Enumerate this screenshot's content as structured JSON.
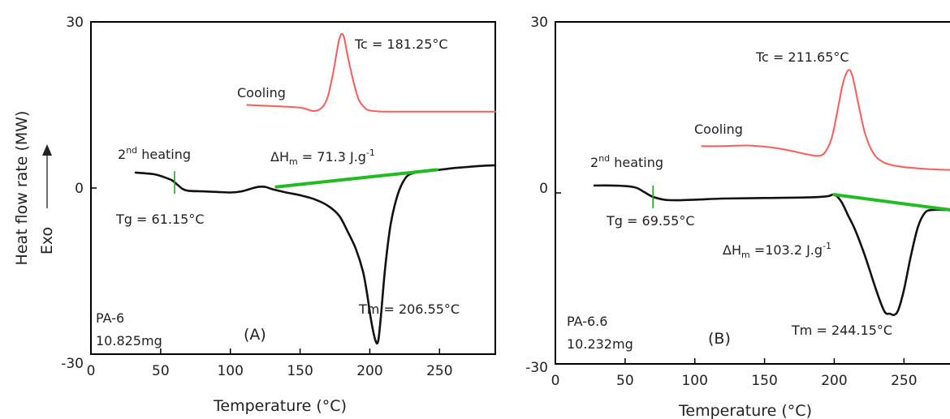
{
  "figure": {
    "ylabel": "Heat flow rate (MW)",
    "exo_label": "Exo"
  },
  "chart_data": [
    {
      "panel": "A",
      "type": "line",
      "xlabel": "Temperature (°C)",
      "ylabel": "Heat flow rate (MW)",
      "xlim": [
        0,
        290
      ],
      "ylim": [
        -30,
        30
      ],
      "xticks": [
        "0",
        "50",
        "100",
        "150",
        "200",
        "250"
      ],
      "yticks": [
        "-30",
        "0",
        "30"
      ],
      "grid": false,
      "colors": {
        "heating": "#111111",
        "cooling": "#ff5a5a",
        "baseline": "#22bb22",
        "tg_marker": "#22aa22"
      },
      "series": [
        {
          "name": "Cooling",
          "x": [
            112,
            130,
            150,
            160,
            166,
            170,
            174,
            178,
            181,
            184,
            188,
            192,
            196,
            200,
            210,
            230,
            260,
            290
          ],
          "y": [
            15,
            14.8,
            14.5,
            13.9,
            14.6,
            16.6,
            21.2,
            26.8,
            27.6,
            24,
            19.5,
            16,
            14.6,
            14,
            13.8,
            13.8,
            13.8,
            13.8
          ]
        },
        {
          "name": "2nd heating",
          "x": [
            32,
            45,
            52,
            58,
            62,
            66,
            70,
            80,
            90,
            100,
            108,
            115,
            120,
            125,
            130,
            140,
            150,
            160,
            170,
            178,
            184,
            190,
            195,
            198,
            201,
            204,
            206,
            208,
            211,
            215,
            220,
            225,
            230,
            240,
            250,
            260,
            270,
            280,
            290
          ],
          "y": [
            2.8,
            2.5,
            2,
            1.4,
            0.6,
            -0.2,
            -0.5,
            -0.6,
            -0.7,
            -0.8,
            -0.6,
            -0.1,
            0.2,
            0.2,
            -0.2,
            -0.8,
            -1.3,
            -2,
            -3.2,
            -5,
            -7.8,
            -11,
            -15,
            -19,
            -24,
            -27.5,
            -27.6,
            -23,
            -14.5,
            -6.5,
            -1.2,
            1.6,
            2.6,
            3,
            3.3,
            3.6,
            3.8,
            4,
            4.1
          ]
        },
        {
          "name": "ΔHm baseline",
          "x": [
            133,
            248
          ],
          "y": [
            0.2,
            3.3
          ]
        }
      ],
      "annotations": {
        "tc": "Tc = 181.25°C",
        "cooling": "Cooling",
        "heating": "2",
        "heating_sup": "nd",
        "heating_rest": " heating",
        "dh_prefix": "ΔH",
        "dh_sub": "m",
        "dh_value": " = 71.3 J.g",
        "dh_sup": "-1",
        "tg": "Tg = 61.15°C",
        "tm": "Tm = 206.55°C",
        "sample": "PA-6",
        "mass": "10.825mg",
        "panel_label": "(A)"
      },
      "tg_x": 60
    },
    {
      "panel": "B",
      "type": "line",
      "xlabel": "Temperature (°C)",
      "ylabel": "Heat flow rate (MW)",
      "xlim": [
        0,
        290
      ],
      "ylim": [
        -30,
        30
      ],
      "xticks": [
        "0",
        "50",
        "100",
        "150",
        "200",
        "250"
      ],
      "yticks": [
        "-30",
        "0",
        "30"
      ],
      "grid": false,
      "colors": {
        "heating": "#111111",
        "cooling": "#ff5a5a",
        "baseline": "#22bb22",
        "tg_marker": "#22aa22"
      },
      "series": [
        {
          "name": "Cooling",
          "x": [
            105,
            120,
            140,
            160,
            180,
            188,
            193,
            198,
            202,
            206,
            210,
            213,
            217,
            222,
            228,
            235,
            245,
            260,
            275,
            290
          ],
          "y": [
            8.2,
            8.2,
            8.3,
            7.8,
            6.8,
            6.5,
            7,
            9.5,
            14,
            19,
            21.5,
            20.5,
            16,
            10.5,
            7,
            5.4,
            4.7,
            4.3,
            4.1,
            4
          ]
        },
        {
          "name": "2nd heating",
          "x": [
            28,
            40,
            50,
            58,
            64,
            70,
            78,
            85,
            100,
            120,
            150,
            180,
            195,
            200,
            205,
            210,
            215,
            222,
            230,
            236,
            240,
            243,
            246,
            250,
            255,
            260,
            265,
            270,
            280,
            290
          ],
          "y": [
            1.3,
            1.3,
            1.2,
            0.9,
            0.1,
            -0.7,
            -1.2,
            -1.3,
            -1.2,
            -1,
            -0.9,
            -0.8,
            -0.6,
            -0.3,
            -1.5,
            -4,
            -6.5,
            -11,
            -17,
            -20.8,
            -21.2,
            -21.4,
            -20.5,
            -17,
            -11,
            -6,
            -3.5,
            -3,
            -3,
            -3.2
          ]
        },
        {
          "name": "ΔHm baseline",
          "x": [
            200,
            290
          ],
          "y": [
            -0.3,
            -3.2
          ]
        }
      ],
      "annotations": {
        "tc": "Tc = 211.65°C",
        "cooling": "Cooling",
        "heating": "2",
        "heating_sup": "nd",
        "heating_rest": " heating",
        "dh_prefix": "ΔH",
        "dh_sub": "m",
        "dh_value": " =103.2 J.g",
        "dh_sup": "-1",
        "tg": "Tg = 69.55°C",
        "tm": "Tm = 244.15°C",
        "sample": "PA-6.6",
        "mass": "10.232mg",
        "panel_label": "(B)"
      },
      "tg_x": 70
    }
  ]
}
